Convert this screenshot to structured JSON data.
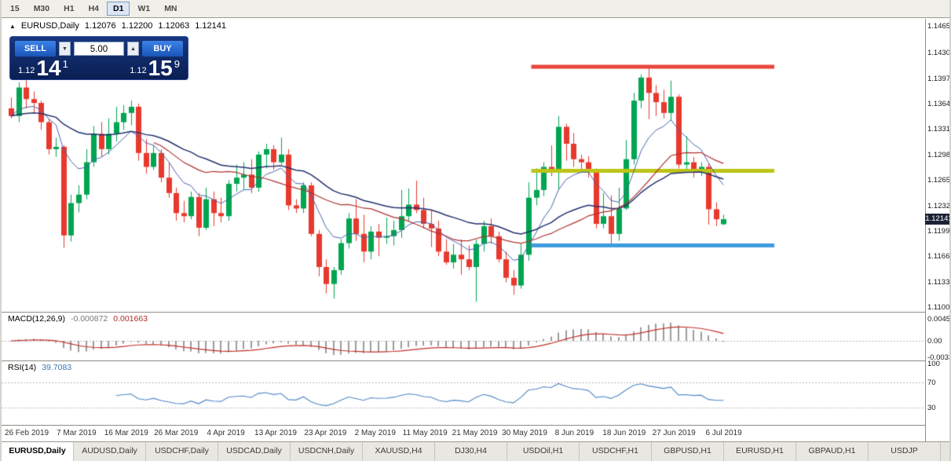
{
  "toolbar": {
    "timeframes": [
      {
        "label": "15",
        "active": false
      },
      {
        "label": "M30",
        "active": false
      },
      {
        "label": "H1",
        "active": false
      },
      {
        "label": "H4",
        "active": false
      },
      {
        "label": "D1",
        "active": true
      },
      {
        "label": "W1",
        "active": false
      },
      {
        "label": "MN",
        "active": false
      }
    ]
  },
  "header": {
    "symbol": "EURUSD,Daily",
    "open": "1.12076",
    "high": "1.12200",
    "low": "1.12063",
    "close": "1.12141",
    "collapse_icon": "▲"
  },
  "trade_panel": {
    "sell_label": "SELL",
    "buy_label": "BUY",
    "volume": "5.00",
    "spin_down_icon": "▼",
    "spin_up_icon": "▲",
    "sell_price": {
      "base": "1.12",
      "big": "14",
      "sup": "1"
    },
    "buy_price": {
      "base": "1.12",
      "big": "15",
      "sup": "9"
    }
  },
  "price_axis": {
    "labels": [
      "1.14650",
      "1.14300",
      "1.13970",
      "1.13640",
      "1.13310",
      "1.12980",
      "1.12650",
      "1.12320",
      "1.11990",
      "1.11660",
      "1.11330",
      "1.11000"
    ],
    "current": "1.12141"
  },
  "macd": {
    "label": "MACD(12,26,9)",
    "main_value": "-0.000872",
    "signal_value": "0.001663",
    "axis": [
      "0.004537",
      "0.00",
      "-0.003362"
    ]
  },
  "rsi": {
    "label": "RSI(14)",
    "value": "39.7083",
    "axis": [
      "100",
      "70",
      "30"
    ]
  },
  "date_axis": {
    "labels": [
      "26 Feb 2019",
      "7 Mar 2019",
      "16 Mar 2019",
      "26 Mar 2019",
      "4 Apr 2019",
      "13 Apr 2019",
      "23 Apr 2019",
      "2 May 2019",
      "11 May 2019",
      "21 May 2019",
      "30 May 2019",
      "8 Jun 2019",
      "18 Jun 2019",
      "27 Jun 2019",
      "6 Jul 2019"
    ]
  },
  "tabs": {
    "items": [
      {
        "label": "EURUSD,Daily",
        "active": true
      },
      {
        "label": "AUDUSD,Daily",
        "active": false
      },
      {
        "label": "USDCHF,Daily",
        "active": false
      },
      {
        "label": "USDCAD,Daily",
        "active": false
      },
      {
        "label": "USDCNH,Daily",
        "active": false
      },
      {
        "label": "XAUUSD,H4",
        "active": false
      },
      {
        "label": "DJ30,H4",
        "active": false
      },
      {
        "label": "USDOil,H1",
        "active": false
      },
      {
        "label": "USDCHF,H1",
        "active": false
      },
      {
        "label": "GBPUSD,H1",
        "active": false
      },
      {
        "label": "EURUSD,H1",
        "active": false
      },
      {
        "label": "GBPAUD,H1",
        "active": false
      },
      {
        "label": "USDJP",
        "active": false
      }
    ]
  },
  "colors": {
    "up": "#00A551",
    "down": "#E8392E",
    "macd_hist": "#9C9C9C",
    "macd_signal": "#C03028",
    "rsi_line": "#4E86C8",
    "badge_bg": "#1C2336",
    "level_gray": "#B8B8B8"
  },
  "chart_data": {
    "type": "candlestick",
    "symbol": "EURUSD",
    "timeframe": "Daily",
    "ylim": [
      1.11,
      1.1465
    ],
    "ohlc": [
      [
        1.1358,
        1.1372,
        1.1345,
        1.1348
      ],
      [
        1.1348,
        1.1392,
        1.134,
        1.1385
      ],
      [
        1.1385,
        1.1398,
        1.1358,
        1.137
      ],
      [
        1.137,
        1.138,
        1.1352,
        1.1365
      ],
      [
        1.1365,
        1.1368,
        1.133,
        1.134
      ],
      [
        1.134,
        1.1345,
        1.1298,
        1.1305
      ],
      [
        1.1305,
        1.132,
        1.1295,
        1.1308
      ],
      [
        1.1308,
        1.131,
        1.1177,
        1.1193
      ],
      [
        1.1193,
        1.1246,
        1.1185,
        1.1235
      ],
      [
        1.1235,
        1.1258,
        1.1223,
        1.1246
      ],
      [
        1.1246,
        1.1305,
        1.124,
        1.1288
      ],
      [
        1.1288,
        1.1335,
        1.1282,
        1.1325
      ],
      [
        1.1325,
        1.134,
        1.1295,
        1.1305
      ],
      [
        1.1305,
        1.1345,
        1.1298,
        1.1325
      ],
      [
        1.1325,
        1.136,
        1.1315,
        1.134
      ],
      [
        1.134,
        1.1362,
        1.133,
        1.1352
      ],
      [
        1.1352,
        1.1368,
        1.1336,
        1.136
      ],
      [
        1.136,
        1.1364,
        1.129,
        1.13
      ],
      [
        1.13,
        1.1318,
        1.1273,
        1.1282
      ],
      [
        1.1282,
        1.131,
        1.1278,
        1.13
      ],
      [
        1.13,
        1.1305,
        1.1262,
        1.1268
      ],
      [
        1.1268,
        1.1288,
        1.1242,
        1.1248
      ],
      [
        1.1248,
        1.1255,
        1.1212,
        1.1222
      ],
      [
        1.1222,
        1.1238,
        1.121,
        1.1218
      ],
      [
        1.1218,
        1.125,
        1.1214,
        1.1243
      ],
      [
        1.1243,
        1.1248,
        1.1192,
        1.1203
      ],
      [
        1.1203,
        1.1255,
        1.12,
        1.124
      ],
      [
        1.124,
        1.125,
        1.1205,
        1.1222
      ],
      [
        1.1222,
        1.1242,
        1.121,
        1.1218
      ],
      [
        1.1218,
        1.1265,
        1.1212,
        1.126
      ],
      [
        1.126,
        1.1285,
        1.125,
        1.1268
      ],
      [
        1.1268,
        1.1288,
        1.1252,
        1.1272
      ],
      [
        1.1272,
        1.1292,
        1.1248,
        1.1255
      ],
      [
        1.1255,
        1.1302,
        1.125,
        1.1298
      ],
      [
        1.1298,
        1.1312,
        1.128,
        1.1305
      ],
      [
        1.1305,
        1.131,
        1.1278,
        1.1288
      ],
      [
        1.1288,
        1.132,
        1.1285,
        1.1298
      ],
      [
        1.1298,
        1.1305,
        1.1226,
        1.1232
      ],
      [
        1.1232,
        1.124,
        1.1222,
        1.1228
      ],
      [
        1.1228,
        1.1262,
        1.1222,
        1.1258
      ],
      [
        1.1258,
        1.1262,
        1.1192,
        1.1195
      ],
      [
        1.1195,
        1.12,
        1.114,
        1.1152
      ],
      [
        1.1152,
        1.1162,
        1.1118,
        1.113
      ],
      [
        1.113,
        1.1152,
        1.1111,
        1.1148
      ],
      [
        1.1148,
        1.1188,
        1.1142,
        1.1183
      ],
      [
        1.1183,
        1.1222,
        1.1176,
        1.1215
      ],
      [
        1.1215,
        1.124,
        1.1186,
        1.1195
      ],
      [
        1.1195,
        1.122,
        1.1158,
        1.1172
      ],
      [
        1.1172,
        1.1205,
        1.1162,
        1.1198
      ],
      [
        1.1198,
        1.1208,
        1.1166,
        1.119
      ],
      [
        1.119,
        1.1216,
        1.1182,
        1.1192
      ],
      [
        1.1192,
        1.1212,
        1.118,
        1.12
      ],
      [
        1.12,
        1.1252,
        1.119,
        1.1218
      ],
      [
        1.1218,
        1.1254,
        1.1212,
        1.1233
      ],
      [
        1.1233,
        1.1264,
        1.1222,
        1.1226
      ],
      [
        1.1226,
        1.1242,
        1.1202,
        1.1208
      ],
      [
        1.1208,
        1.1226,
        1.1178,
        1.1202
      ],
      [
        1.1202,
        1.1212,
        1.1166,
        1.1172
      ],
      [
        1.1172,
        1.1188,
        1.1155,
        1.1158
      ],
      [
        1.1158,
        1.1182,
        1.115,
        1.1168
      ],
      [
        1.1168,
        1.1188,
        1.1142,
        1.1162
      ],
      [
        1.1162,
        1.118,
        1.1148,
        1.1152
      ],
      [
        1.1152,
        1.1188,
        1.1107,
        1.1182
      ],
      [
        1.1182,
        1.1212,
        1.1172,
        1.1205
      ],
      [
        1.1205,
        1.1215,
        1.1182,
        1.1192
      ],
      [
        1.1192,
        1.1198,
        1.1158,
        1.1162
      ],
      [
        1.1162,
        1.1172,
        1.1132,
        1.1138
      ],
      [
        1.1138,
        1.1148,
        1.1116,
        1.1128
      ],
      [
        1.1128,
        1.1182,
        1.1124,
        1.1168
      ],
      [
        1.1168,
        1.1262,
        1.116,
        1.1242
      ],
      [
        1.1242,
        1.128,
        1.1232,
        1.1252
      ],
      [
        1.1252,
        1.1288,
        1.1244,
        1.1282
      ],
      [
        1.1282,
        1.131,
        1.127,
        1.1276
      ],
      [
        1.1276,
        1.1348,
        1.1252,
        1.1334
      ],
      [
        1.1334,
        1.1338,
        1.129,
        1.1312
      ],
      [
        1.1312,
        1.1326,
        1.1282,
        1.1292
      ],
      [
        1.1292,
        1.1298,
        1.1278,
        1.1288
      ],
      [
        1.1288,
        1.1296,
        1.1268,
        1.1276
      ],
      [
        1.1276,
        1.128,
        1.1202,
        1.1208
      ],
      [
        1.1208,
        1.1248,
        1.1202,
        1.1218
      ],
      [
        1.1218,
        1.1245,
        1.1181,
        1.1195
      ],
      [
        1.1195,
        1.1255,
        1.1186,
        1.1228
      ],
      [
        1.1228,
        1.1317,
        1.1226,
        1.1292
      ],
      [
        1.1292,
        1.1378,
        1.1285,
        1.1368
      ],
      [
        1.1368,
        1.1402,
        1.1358,
        1.1398
      ],
      [
        1.1398,
        1.1412,
        1.1344,
        1.1378
      ],
      [
        1.1378,
        1.1388,
        1.1348,
        1.1366
      ],
      [
        1.1366,
        1.1382,
        1.1345,
        1.1352
      ],
      [
        1.1352,
        1.1394,
        1.1342,
        1.1373
      ],
      [
        1.1373,
        1.1376,
        1.128,
        1.1285
      ],
      [
        1.1285,
        1.1322,
        1.1275,
        1.1288
      ],
      [
        1.1288,
        1.1295,
        1.1268,
        1.1278
      ],
      [
        1.1278,
        1.1288,
        1.127,
        1.1282
      ],
      [
        1.1282,
        1.1286,
        1.1207,
        1.1227
      ],
      [
        1.1227,
        1.1236,
        1.1205,
        1.1214
      ],
      [
        1.12076,
        1.122,
        1.12063,
        1.12141
      ]
    ],
    "overlays": [
      {
        "name": "fast-ma",
        "type": "ema",
        "period": 8,
        "color": "#4663AC",
        "width": 1
      },
      {
        "name": "slow-ma",
        "type": "ema",
        "period": 34,
        "color": "#25316F",
        "width": 1.5
      },
      {
        "name": "mid-ma",
        "type": "sma",
        "period": 20,
        "color": "#B03030",
        "width": 1.2
      }
    ],
    "hlines": [
      {
        "name": "resistance-line",
        "price": 1.1412,
        "color": "#E8473C",
        "width": 5
      },
      {
        "name": "broken-support-line",
        "price": 1.1277,
        "color": "#BCC418",
        "width": 5
      },
      {
        "name": "support-line",
        "price": 1.118,
        "color": "#3E9BDE",
        "width": 5
      }
    ],
    "macd": {
      "fast": 12,
      "slow": 26,
      "signal": 9
    },
    "rsi_period": 14
  }
}
